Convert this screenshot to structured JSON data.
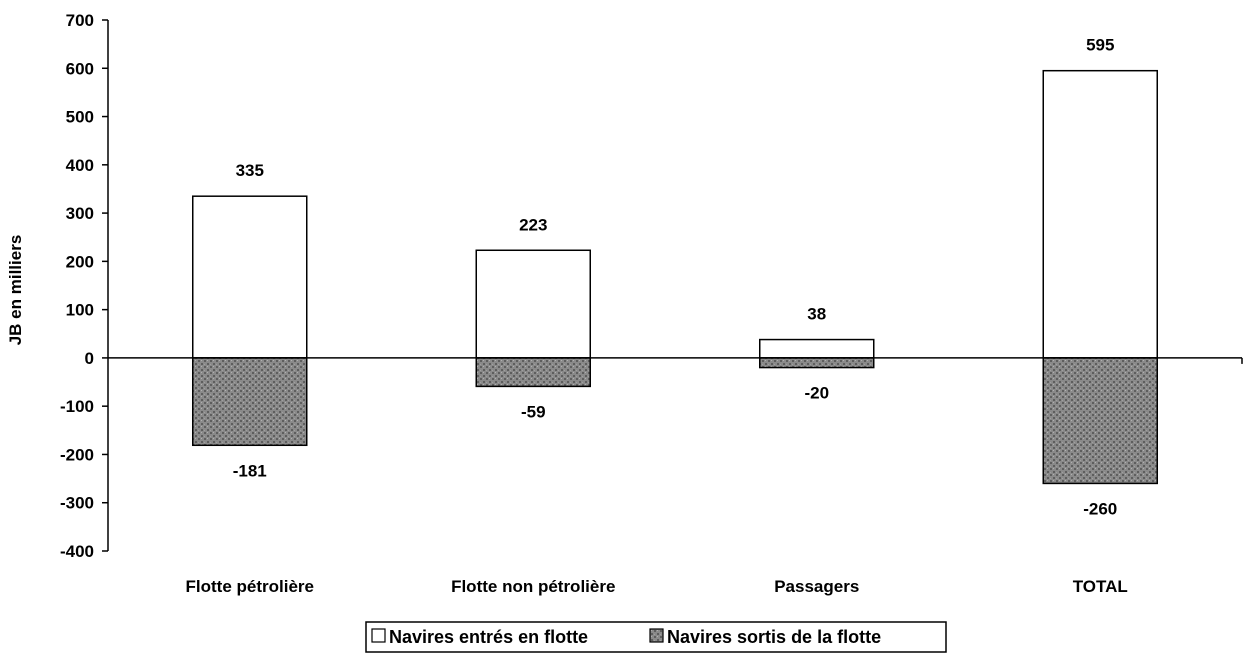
{
  "chart_data": {
    "type": "bar",
    "title": "",
    "xlabel": "",
    "ylabel": "JB en milliers",
    "ylim": [
      -400,
      700
    ],
    "yticks": [
      700,
      600,
      500,
      400,
      300,
      200,
      100,
      0,
      -100,
      -200,
      -300,
      -400
    ],
    "grid": false,
    "legend_position": "bottom",
    "categories": [
      "Flotte pétrolière",
      "Flotte non pétrolière",
      "Passagers",
      "TOTAL"
    ],
    "series": [
      {
        "name": "Navires entrés en flotte",
        "values": [
          335,
          223,
          38,
          595
        ],
        "color": "#ffffff",
        "labels": [
          "335",
          "223",
          "38",
          "595"
        ]
      },
      {
        "name": "Navires sortis de la flotte",
        "values": [
          -181,
          -59,
          -20,
          -260
        ],
        "color": "#7a7a7a",
        "labels": [
          "-181",
          "-59",
          "-20",
          "-260"
        ]
      }
    ]
  }
}
